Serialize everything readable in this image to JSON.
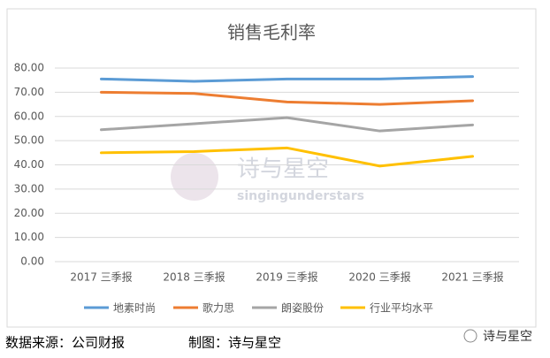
{
  "chart_data": {
    "type": "line",
    "title": "销售毛利率",
    "categories": [
      "2017 三季报",
      "2018 三季报",
      "2019 三季报",
      "2020 三季报",
      "2021 三季报"
    ],
    "series": [
      {
        "name": "地素时尚",
        "color": "#5b9bd5",
        "values": [
          75.5,
          74.5,
          75.5,
          75.5,
          76.5
        ]
      },
      {
        "name": "歌力思",
        "color": "#ed7d31",
        "values": [
          70,
          69.5,
          66,
          65,
          66.5
        ]
      },
      {
        "name": "朗姿股份",
        "color": "#a5a5a5",
        "values": [
          54.5,
          57,
          59.5,
          54,
          56.5
        ]
      },
      {
        "name": "行业平均水平",
        "color": "#ffc000",
        "values": [
          45,
          45.5,
          47,
          39.5,
          43.5
        ]
      }
    ],
    "ylim": [
      0,
      80
    ],
    "yticks": [
      {
        "value": 0,
        "label": "0.00"
      },
      {
        "value": 10,
        "label": "10.00"
      },
      {
        "value": 20,
        "label": "20.00"
      },
      {
        "value": 30,
        "label": "30.00"
      },
      {
        "value": 40,
        "label": "40.00"
      },
      {
        "value": 50,
        "label": "50.00"
      },
      {
        "value": 60,
        "label": "60.00"
      },
      {
        "value": 70,
        "label": "70.00"
      },
      {
        "value": 80,
        "label": "80.00"
      }
    ],
    "grid": true,
    "legend": "bottom"
  },
  "watermark": {
    "title": "诗与星空",
    "subtitle": "singingunderstars"
  },
  "footer": {
    "source": "数据来源：公司财报",
    "credit": "制图：诗与星空",
    "account": "诗与星空"
  }
}
